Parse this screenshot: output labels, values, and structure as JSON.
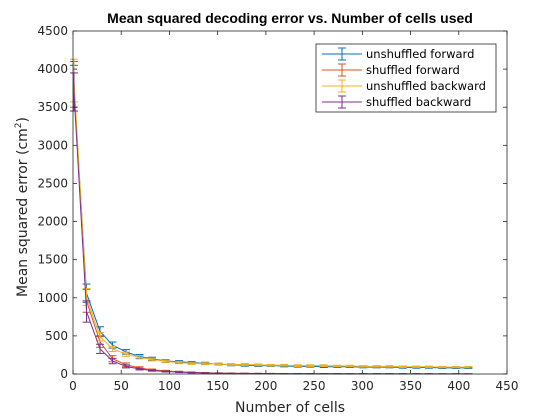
{
  "chart_data": {
    "type": "line",
    "title": "Mean squared decoding error vs. Number of cells used",
    "xlabel": "Number of cells",
    "ylabel": "Mean squared error (cm",
    "ylabel_sup": "2",
    "ylabel_close": ")",
    "xlim": [
      0,
      450
    ],
    "ylim": [
      0,
      4500
    ],
    "xticks": [
      0,
      50,
      100,
      150,
      200,
      250,
      300,
      350,
      400,
      450
    ],
    "yticks": [
      0,
      500,
      1000,
      1500,
      2000,
      2500,
      3000,
      3500,
      4000,
      4500
    ],
    "grid": false,
    "legend_position": "top-right",
    "x": [
      1,
      14,
      28,
      41,
      55,
      69,
      82,
      96,
      110,
      123,
      137,
      151,
      164,
      178,
      192,
      205,
      219,
      233,
      246,
      260,
      274,
      287,
      301,
      315,
      328,
      342,
      356,
      369,
      383,
      397,
      410
    ],
    "series": [
      {
        "name": "unshuffled forward",
        "color": "#0072BD",
        "values": [
          3750,
          1060,
          560,
          380,
          290,
          230,
          200,
          170,
          160,
          150,
          140,
          130,
          120,
          115,
          110,
          110,
          105,
          100,
          100,
          95,
          95,
          95,
          90,
          90,
          90,
          85,
          85,
          85,
          80,
          80,
          80
        ],
        "errors": [
          300,
          120,
          60,
          40,
          30,
          25,
          20,
          18,
          16,
          15,
          14,
          13,
          12,
          12,
          11,
          11,
          11,
          10,
          10,
          10,
          10,
          10,
          9,
          9,
          9,
          9,
          9,
          9,
          8,
          8,
          8
        ]
      },
      {
        "name": "shuffled forward",
        "color": "#D95319",
        "values": [
          3800,
          960,
          420,
          200,
          120,
          80,
          55,
          40,
          30,
          22,
          16,
          12,
          10,
          8,
          7,
          6,
          5,
          5,
          4,
          4,
          3,
          3,
          3,
          3,
          3,
          2,
          2,
          2,
          2,
          2,
          2
        ],
        "errors": [
          300,
          150,
          70,
          40,
          25,
          15,
          10,
          8,
          6,
          5,
          4,
          3,
          3,
          2,
          2,
          2,
          2,
          2,
          1,
          1,
          1,
          1,
          1,
          1,
          1,
          1,
          1,
          1,
          1,
          1,
          1
        ]
      },
      {
        "name": "unshuffled backward",
        "color": "#EDB120",
        "values": [
          3850,
          1010,
          490,
          330,
          260,
          220,
          190,
          165,
          150,
          140,
          135,
          130,
          125,
          125,
          120,
          115,
          115,
          110,
          110,
          110,
          105,
          105,
          100,
          100,
          100,
          95,
          95,
          95,
          90,
          90,
          90
        ],
        "errors": [
          280,
          110,
          55,
          35,
          28,
          22,
          18,
          16,
          15,
          14,
          13,
          13,
          12,
          12,
          12,
          11,
          11,
          11,
          11,
          11,
          10,
          10,
          10,
          10,
          10,
          10,
          9,
          9,
          9,
          9,
          9
        ]
      },
      {
        "name": "shuffled backward",
        "color": "#7E2F8E",
        "values": [
          3700,
          820,
          330,
          170,
          100,
          65,
          45,
          32,
          24,
          18,
          13,
          10,
          8,
          7,
          6,
          5,
          4,
          4,
          3,
          3,
          3,
          2,
          2,
          2,
          2,
          2,
          2,
          2,
          1,
          1,
          1
        ],
        "errors": [
          250,
          140,
          60,
          35,
          20,
          12,
          8,
          6,
          5,
          4,
          3,
          3,
          2,
          2,
          2,
          2,
          1,
          1,
          1,
          1,
          1,
          1,
          1,
          1,
          1,
          1,
          1,
          1,
          1,
          1,
          1
        ]
      }
    ]
  }
}
